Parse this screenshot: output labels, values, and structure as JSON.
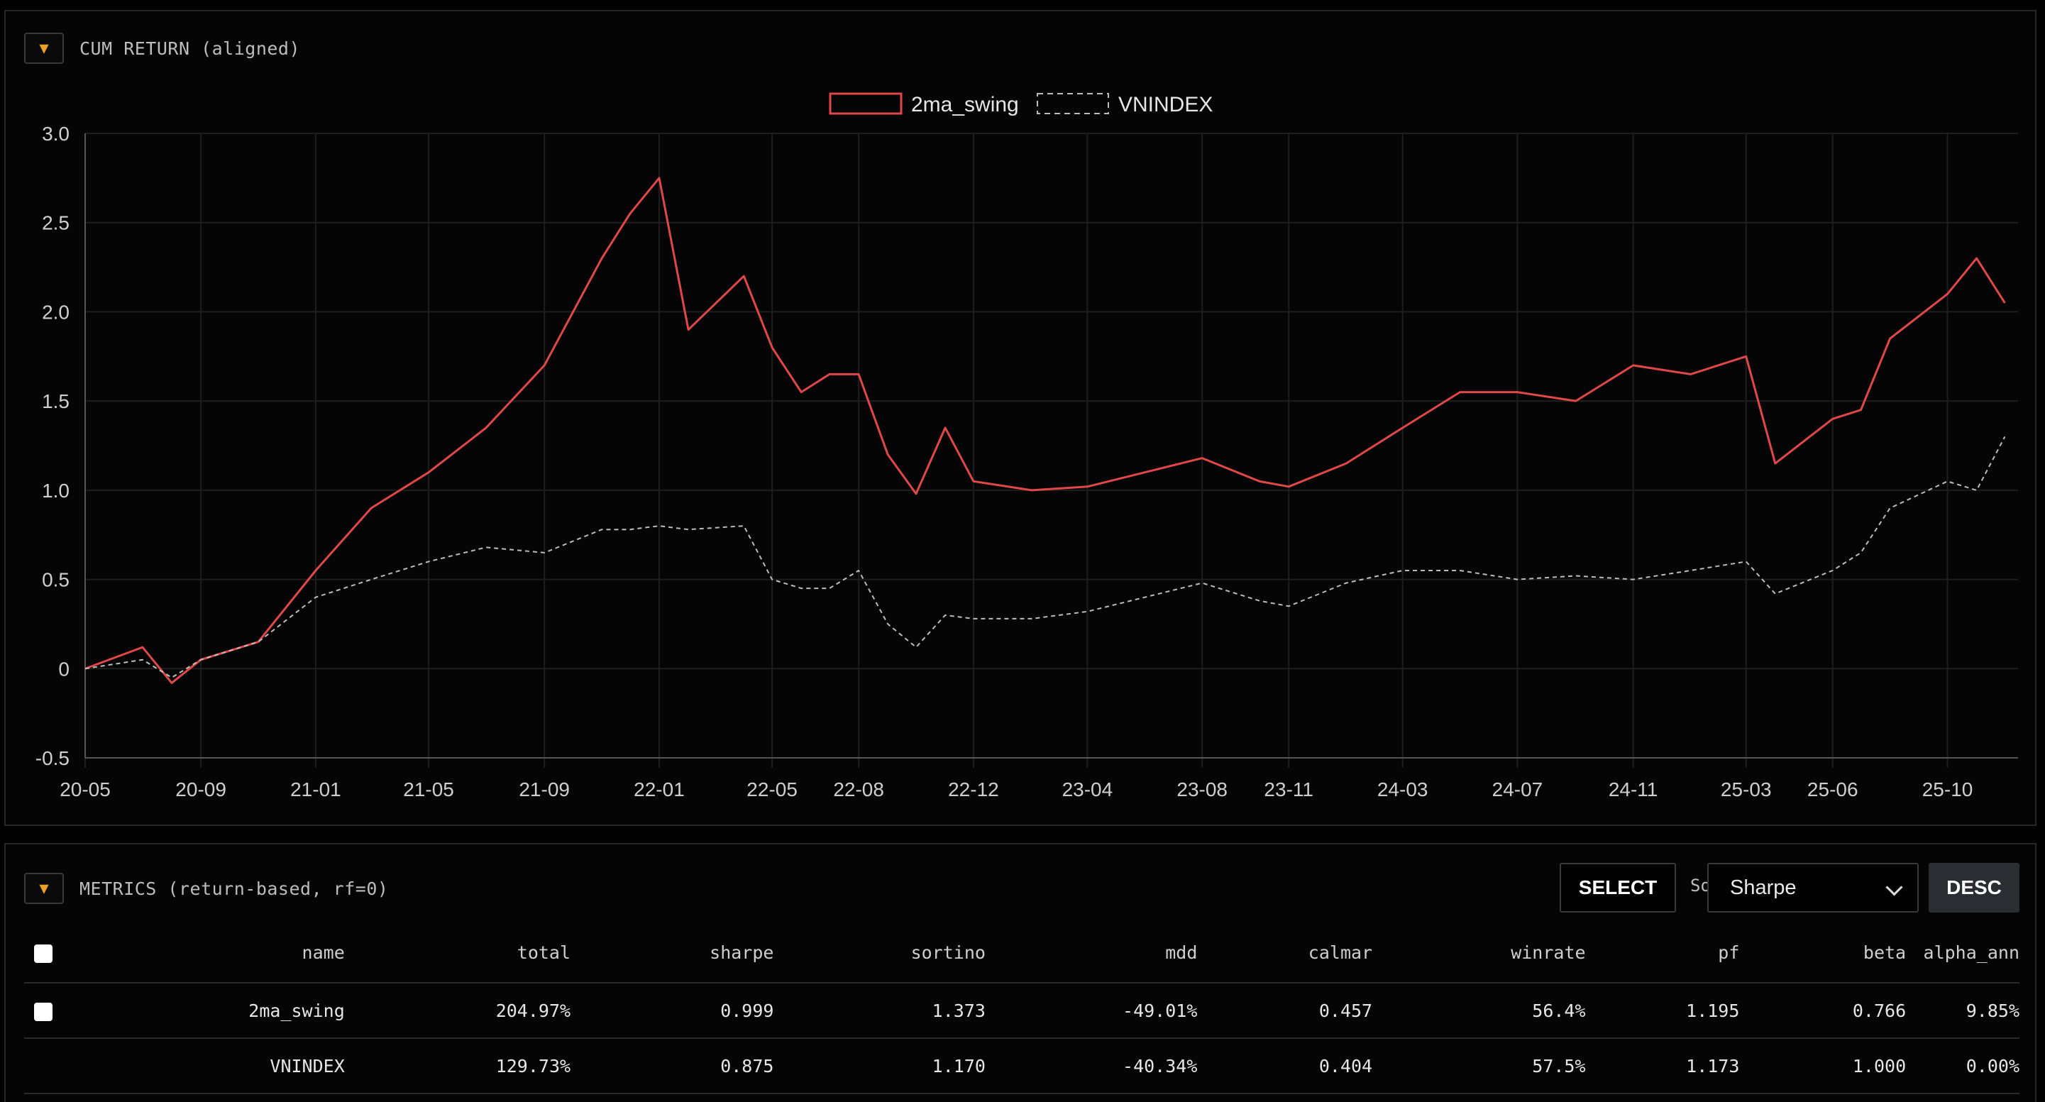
{
  "chart_panel": {
    "title": "CUM RETURN (aligned)",
    "toggle_icon": "caret-down-icon"
  },
  "colors": {
    "accent": "#f0a020",
    "strategy": "#e04848",
    "benchmark": "#bdbdbd"
  },
  "chart_data": {
    "type": "line",
    "title": "",
    "xlabel": "",
    "ylabel": "",
    "ylim": [
      -0.5,
      3.0
    ],
    "yticks": [
      "3.0",
      "2.5",
      "2.0",
      "1.5",
      "1.0",
      "0.5",
      "0",
      "-0.5"
    ],
    "ytick_values": [
      3.0,
      2.5,
      2.0,
      1.5,
      1.0,
      0.5,
      0,
      -0.5
    ],
    "xticks": [
      "20-05",
      "20-09",
      "21-01",
      "21-05",
      "21-09",
      "22-01",
      "22-05",
      "22-08",
      "22-12",
      "23-04",
      "23-08",
      "23-11",
      "24-03",
      "24-07",
      "24-11",
      "25-03",
      "25-06",
      "25-10"
    ],
    "x": [
      "2020-05",
      "2020-07",
      "2020-08",
      "2020-09",
      "2020-11",
      "2021-01",
      "2021-03",
      "2021-05",
      "2021-07",
      "2021-09",
      "2021-11",
      "2021-12",
      "2022-01",
      "2022-02",
      "2022-04",
      "2022-05",
      "2022-06",
      "2022-07",
      "2022-08",
      "2022-09",
      "2022-10",
      "2022-11",
      "2022-12",
      "2023-02",
      "2023-04",
      "2023-06",
      "2023-08",
      "2023-10",
      "2023-11",
      "2024-01",
      "2024-03",
      "2024-05",
      "2024-07",
      "2024-09",
      "2024-11",
      "2025-01",
      "2025-03",
      "2025-04",
      "2025-06",
      "2025-07",
      "2025-08",
      "2025-10",
      "2025-11",
      "2025-12"
    ],
    "series": [
      {
        "name": "2ma_swing",
        "color": "#e04848",
        "dash": false,
        "values": [
          0.0,
          0.12,
          -0.08,
          0.05,
          0.15,
          0.55,
          0.9,
          1.1,
          1.35,
          1.7,
          2.3,
          2.55,
          2.75,
          1.9,
          2.2,
          1.8,
          1.55,
          1.65,
          1.65,
          1.2,
          0.98,
          1.35,
          1.05,
          1.0,
          1.02,
          1.1,
          1.18,
          1.05,
          1.02,
          1.15,
          1.35,
          1.55,
          1.55,
          1.5,
          1.7,
          1.65,
          1.75,
          1.15,
          1.4,
          1.45,
          1.85,
          2.1,
          2.3,
          2.05
        ]
      },
      {
        "name": "VNINDEX",
        "color": "#bdbdbd",
        "dash": true,
        "values": [
          0.0,
          0.05,
          -0.05,
          0.05,
          0.15,
          0.4,
          0.5,
          0.6,
          0.68,
          0.65,
          0.78,
          0.78,
          0.8,
          0.78,
          0.8,
          0.5,
          0.45,
          0.45,
          0.55,
          0.25,
          0.12,
          0.3,
          0.28,
          0.28,
          0.32,
          0.4,
          0.48,
          0.38,
          0.35,
          0.48,
          0.55,
          0.55,
          0.5,
          0.52,
          0.5,
          0.55,
          0.6,
          0.42,
          0.55,
          0.65,
          0.9,
          1.05,
          1.0,
          1.3
        ]
      }
    ],
    "legend_position": "top-center",
    "grid": true
  },
  "metrics_panel": {
    "title": "METRICS (return-based, rf=0)",
    "toggle_icon": "caret-down-icon",
    "select_label": "SELECT",
    "sort_label": "Sort",
    "sort_value": "Sharpe",
    "order_label": "DESC",
    "columns": [
      "name",
      "total",
      "sharpe",
      "sortino",
      "mdd",
      "calmar",
      "winrate",
      "pf",
      "beta",
      "alpha_ann"
    ],
    "rows": [
      {
        "name": "2ma_swing",
        "total": "204.97%",
        "sharpe": "0.999",
        "sortino": "1.373",
        "mdd": "-49.01%",
        "calmar": "0.457",
        "winrate": "56.4%",
        "pf": "1.195",
        "beta": "0.766",
        "alpha_ann": "9.85%"
      },
      {
        "name": "VNINDEX",
        "total": "129.73%",
        "sharpe": "0.875",
        "sortino": "1.170",
        "mdd": "-40.34%",
        "calmar": "0.404",
        "winrate": "57.5%",
        "pf": "1.173",
        "beta": "1.000",
        "alpha_ann": "0.00%"
      }
    ]
  }
}
